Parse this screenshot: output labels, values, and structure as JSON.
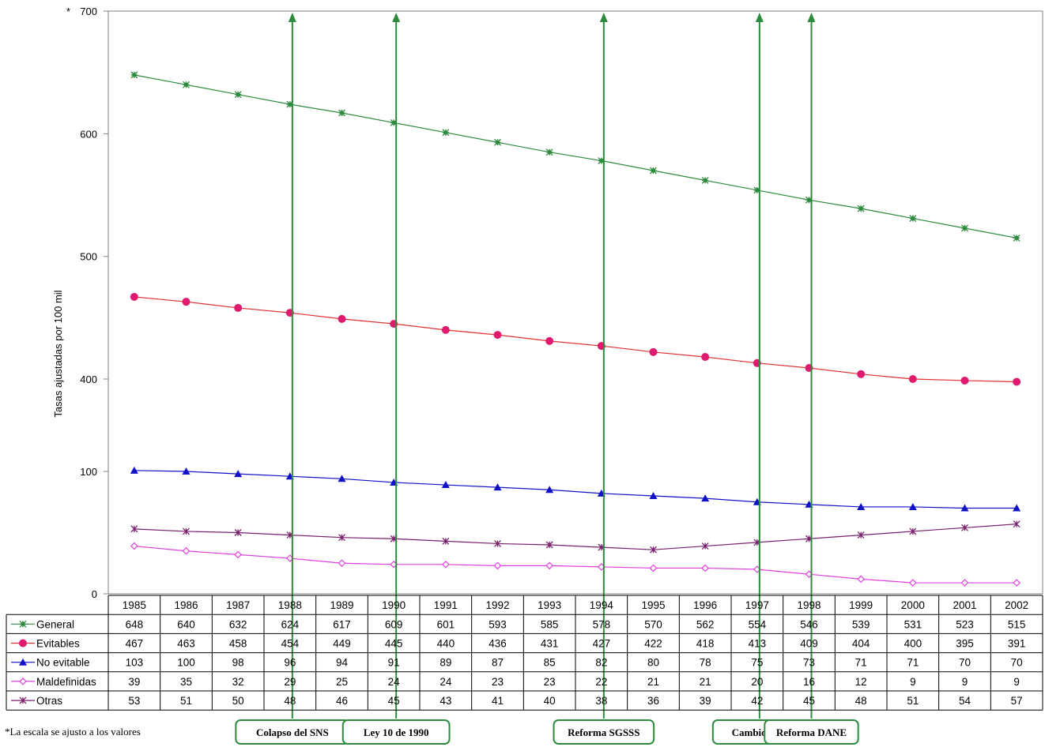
{
  "chart_data": {
    "type": "line",
    "ylabel": "Tasas ajustadas por 100 mil",
    "axis_note": "*",
    "yticks": [
      "0",
      "100",
      "400",
      "500",
      "600",
      "700"
    ],
    "scale_note": "*La escala se ajusto a los valores",
    "categories": [
      "1985",
      "1986",
      "1987",
      "1988",
      "1989",
      "1990",
      "1991",
      "1992",
      "1993",
      "1994",
      "1995",
      "1996",
      "1997",
      "1998",
      "1999",
      "2000",
      "2001",
      "2002"
    ],
    "series": [
      {
        "name": "General",
        "color": "#2e8b3e",
        "marker": "star",
        "values": [
          648,
          640,
          632,
          624,
          617,
          609,
          601,
          593,
          585,
          578,
          570,
          562,
          554,
          546,
          539,
          531,
          523,
          515
        ]
      },
      {
        "name": "Evitables",
        "color": "#e01a6f",
        "line_color": "#e03030",
        "marker": "circle",
        "values": [
          467,
          463,
          458,
          454,
          449,
          445,
          440,
          436,
          431,
          427,
          422,
          418,
          413,
          409,
          404,
          400,
          395,
          391
        ]
      },
      {
        "name": "No evitable",
        "color": "#1010c8",
        "marker": "triangle",
        "values": [
          103,
          100,
          98,
          96,
          94,
          91,
          89,
          87,
          85,
          82,
          80,
          78,
          75,
          73,
          71,
          71,
          70,
          70
        ]
      },
      {
        "name": "Maldefinidas",
        "color": "#e040e0",
        "marker": "diamond",
        "values": [
          39,
          35,
          32,
          29,
          25,
          24,
          24,
          23,
          23,
          22,
          21,
          21,
          20,
          16,
          12,
          9,
          9,
          9
        ]
      },
      {
        "name": "Otras",
        "color": "#7a1f6e",
        "marker": "asterisk",
        "values": [
          53,
          51,
          50,
          48,
          46,
          45,
          43,
          41,
          40,
          38,
          36,
          39,
          42,
          45,
          48,
          51,
          54,
          57
        ]
      }
    ],
    "events": [
      {
        "year": "1988",
        "label": "Colapso del SNS"
      },
      {
        "year": "1990",
        "label": "Ley 10 de 1990"
      },
      {
        "year": "1994",
        "label": "Reforma SGSSS"
      },
      {
        "year": "1997",
        "label": "Cambio CIE"
      },
      {
        "year": "1998",
        "label": "Reforma DANE"
      }
    ],
    "event_color": "#2e8b3e",
    "grid": false,
    "legend": "table-below"
  }
}
